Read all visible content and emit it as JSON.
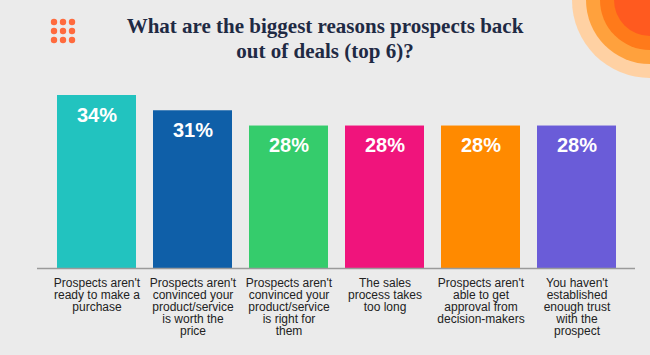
{
  "chart_data": {
    "type": "bar",
    "title": "What are the biggest reasons prospects back out of deals (top 6)?",
    "categories": [
      "Prospects aren't ready to make a purchase",
      "Prospects aren't convinced your product/service is worth the price",
      "Prospects aren't convinced your product/service is right for them",
      "The sales process takes too long",
      "Prospects aren't able to get approval from decision-makers",
      "You haven't established enough trust with the prospect"
    ],
    "values": [
      34,
      31,
      28,
      28,
      28,
      28
    ],
    "value_labels": [
      "34%",
      "31%",
      "28%",
      "28%",
      "28%",
      "28%"
    ],
    "colors": [
      "#22c3bf",
      "#0f5fa8",
      "#35cc6c",
      "#f0147c",
      "#ff8a00",
      "#6a5cd8"
    ],
    "ylim": [
      0,
      34
    ],
    "data_labels": true,
    "tick_labels": false
  }
}
